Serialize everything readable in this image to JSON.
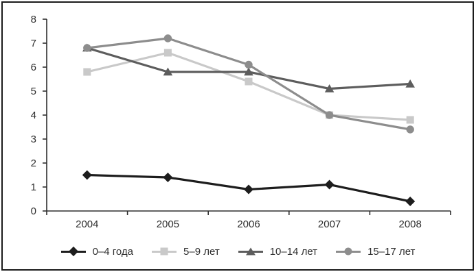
{
  "frame": {
    "border_color": "#1a1a1a"
  },
  "chart_data": {
    "type": "line",
    "title": "",
    "xlabel": "",
    "ylabel": "",
    "x": [
      "2004",
      "2005",
      "2006",
      "2007",
      "2008"
    ],
    "series": [
      {
        "name": "0–4 года",
        "marker": "diamond",
        "color": "#1d1d1d",
        "values": [
          1.5,
          1.4,
          0.9,
          1.1,
          0.4
        ]
      },
      {
        "name": "5–9 лет",
        "marker": "square",
        "color": "#c9c9c9",
        "values": [
          5.8,
          6.6,
          5.4,
          4.0,
          3.8
        ]
      },
      {
        "name": "10–14 лет",
        "marker": "triangle",
        "color": "#5d5d5d",
        "values": [
          6.8,
          5.8,
          5.8,
          5.1,
          5.3
        ]
      },
      {
        "name": "15–17 лет",
        "marker": "circle",
        "color": "#8d8d8d",
        "values": [
          6.8,
          7.2,
          6.1,
          4.0,
          3.4
        ]
      }
    ],
    "ylim": [
      0,
      8
    ],
    "yticks": [
      0,
      1,
      2,
      3,
      4,
      5,
      6,
      7,
      8
    ],
    "grid": false,
    "legend_position": "bottom",
    "axis_color": "#2e2e2e",
    "text_color": "#2e2e2e"
  }
}
